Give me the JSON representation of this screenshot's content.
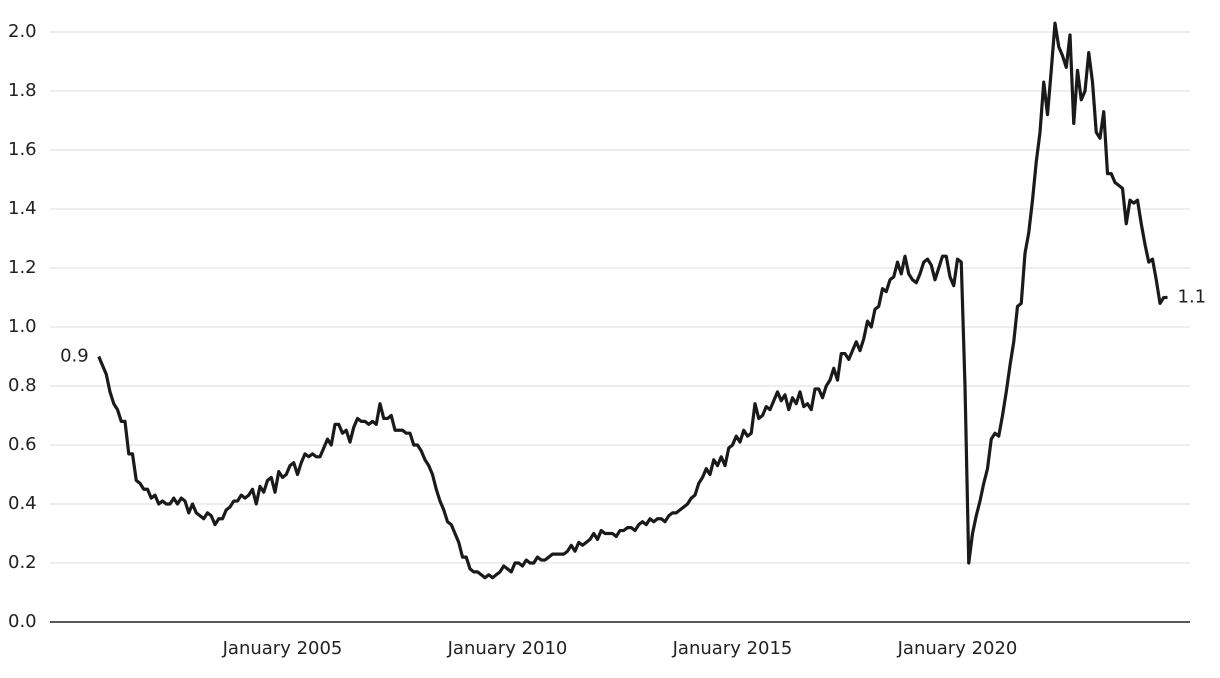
{
  "chart_data": {
    "type": "line",
    "x": [
      "2000-12",
      "2001-01",
      "2001-02",
      "2001-03",
      "2001-04",
      "2001-05",
      "2001-06",
      "2001-07",
      "2001-08",
      "2001-09",
      "2001-10",
      "2001-11",
      "2001-12",
      "2002-01",
      "2002-02",
      "2002-03",
      "2002-04",
      "2002-05",
      "2002-06",
      "2002-07",
      "2002-08",
      "2002-09",
      "2002-10",
      "2002-11",
      "2002-12",
      "2003-01",
      "2003-02",
      "2003-03",
      "2003-04",
      "2003-05",
      "2003-06",
      "2003-07",
      "2003-08",
      "2003-09",
      "2003-10",
      "2003-11",
      "2003-12",
      "2004-01",
      "2004-02",
      "2004-03",
      "2004-04",
      "2004-05",
      "2004-06",
      "2004-07",
      "2004-08",
      "2004-09",
      "2004-10",
      "2004-11",
      "2004-12",
      "2005-01",
      "2005-02",
      "2005-03",
      "2005-04",
      "2005-05",
      "2005-06",
      "2005-07",
      "2005-08",
      "2005-09",
      "2005-10",
      "2005-11",
      "2005-12",
      "2006-01",
      "2006-02",
      "2006-03",
      "2006-04",
      "2006-05",
      "2006-06",
      "2006-07",
      "2006-08",
      "2006-09",
      "2006-10",
      "2006-11",
      "2006-12",
      "2007-01",
      "2007-02",
      "2007-03",
      "2007-04",
      "2007-05",
      "2007-06",
      "2007-07",
      "2007-08",
      "2007-09",
      "2007-10",
      "2007-11",
      "2007-12",
      "2008-01",
      "2008-02",
      "2008-03",
      "2008-04",
      "2008-05",
      "2008-06",
      "2008-07",
      "2008-08",
      "2008-09",
      "2008-10",
      "2008-11",
      "2008-12",
      "2009-01",
      "2009-02",
      "2009-03",
      "2009-04",
      "2009-05",
      "2009-06",
      "2009-07",
      "2009-08",
      "2009-09",
      "2009-10",
      "2009-11",
      "2009-12",
      "2010-01",
      "2010-02",
      "2010-03",
      "2010-04",
      "2010-05",
      "2010-06",
      "2010-07",
      "2010-08",
      "2010-09",
      "2010-10",
      "2010-11",
      "2010-12",
      "2011-01",
      "2011-02",
      "2011-03",
      "2011-04",
      "2011-05",
      "2011-06",
      "2011-07",
      "2011-08",
      "2011-09",
      "2011-10",
      "2011-11",
      "2011-12",
      "2012-01",
      "2012-02",
      "2012-03",
      "2012-04",
      "2012-05",
      "2012-06",
      "2012-07",
      "2012-08",
      "2012-09",
      "2012-10",
      "2012-11",
      "2012-12",
      "2013-01",
      "2013-02",
      "2013-03",
      "2013-04",
      "2013-05",
      "2013-06",
      "2013-07",
      "2013-08",
      "2013-09",
      "2013-10",
      "2013-11",
      "2013-12",
      "2014-01",
      "2014-02",
      "2014-03",
      "2014-04",
      "2014-05",
      "2014-06",
      "2014-07",
      "2014-08",
      "2014-09",
      "2014-10",
      "2014-11",
      "2014-12",
      "2015-01",
      "2015-02",
      "2015-03",
      "2015-04",
      "2015-05",
      "2015-06",
      "2015-07",
      "2015-08",
      "2015-09",
      "2015-10",
      "2015-11",
      "2015-12",
      "2016-01",
      "2016-02",
      "2016-03",
      "2016-04",
      "2016-05",
      "2016-06",
      "2016-07",
      "2016-08",
      "2016-09",
      "2016-10",
      "2016-11",
      "2016-12",
      "2017-01",
      "2017-02",
      "2017-03",
      "2017-04",
      "2017-05",
      "2017-06",
      "2017-07",
      "2017-08",
      "2017-09",
      "2017-10",
      "2017-11",
      "2017-12",
      "2018-01",
      "2018-02",
      "2018-03",
      "2018-04",
      "2018-05",
      "2018-06",
      "2018-07",
      "2018-08",
      "2018-09",
      "2018-10",
      "2018-11",
      "2018-12",
      "2019-01",
      "2019-02",
      "2019-03",
      "2019-04",
      "2019-05",
      "2019-06",
      "2019-07",
      "2019-08",
      "2019-09",
      "2019-10",
      "2019-11",
      "2019-12",
      "2020-01",
      "2020-02",
      "2020-03",
      "2020-04",
      "2020-05",
      "2020-06",
      "2020-07",
      "2020-08",
      "2020-09",
      "2020-10",
      "2020-11",
      "2020-12",
      "2021-01",
      "2021-02",
      "2021-03",
      "2021-04",
      "2021-05",
      "2021-06",
      "2021-07",
      "2021-08",
      "2021-09",
      "2021-10",
      "2021-11",
      "2021-12",
      "2022-01",
      "2022-02",
      "2022-03",
      "2022-04",
      "2022-05",
      "2022-06",
      "2022-07",
      "2022-08",
      "2022-09",
      "2022-10",
      "2022-11",
      "2022-12",
      "2023-01",
      "2023-02",
      "2023-03",
      "2023-04",
      "2023-05",
      "2023-06",
      "2023-07",
      "2023-08",
      "2023-09",
      "2023-10",
      "2023-11",
      "2023-12",
      "2024-01",
      "2024-02",
      "2024-03",
      "2024-04",
      "2024-05",
      "2024-06",
      "2024-07",
      "2024-08",
      "2024-09"
    ],
    "series": [
      {
        "color": "#1a1a1a",
        "values": [
          0.9,
          0.87,
          0.84,
          0.78,
          0.74,
          0.72,
          0.68,
          0.68,
          0.57,
          0.57,
          0.48,
          0.47,
          0.45,
          0.45,
          0.42,
          0.43,
          0.4,
          0.41,
          0.4,
          0.4,
          0.42,
          0.4,
          0.42,
          0.41,
          0.37,
          0.4,
          0.37,
          0.36,
          0.35,
          0.37,
          0.36,
          0.33,
          0.35,
          0.35,
          0.38,
          0.39,
          0.41,
          0.41,
          0.43,
          0.42,
          0.43,
          0.45,
          0.4,
          0.46,
          0.44,
          0.48,
          0.49,
          0.44,
          0.51,
          0.49,
          0.5,
          0.53,
          0.54,
          0.5,
          0.54,
          0.57,
          0.56,
          0.57,
          0.56,
          0.56,
          0.59,
          0.62,
          0.6,
          0.67,
          0.67,
          0.64,
          0.65,
          0.61,
          0.66,
          0.69,
          0.68,
          0.68,
          0.67,
          0.68,
          0.67,
          0.74,
          0.69,
          0.69,
          0.7,
          0.65,
          0.65,
          0.65,
          0.64,
          0.64,
          0.6,
          0.6,
          0.58,
          0.55,
          0.53,
          0.5,
          0.45,
          0.41,
          0.38,
          0.34,
          0.33,
          0.3,
          0.27,
          0.22,
          0.22,
          0.18,
          0.17,
          0.17,
          0.16,
          0.15,
          0.16,
          0.15,
          0.16,
          0.17,
          0.19,
          0.18,
          0.17,
          0.2,
          0.2,
          0.19,
          0.21,
          0.2,
          0.2,
          0.22,
          0.21,
          0.21,
          0.22,
          0.23,
          0.23,
          0.23,
          0.23,
          0.24,
          0.26,
          0.24,
          0.27,
          0.26,
          0.27,
          0.28,
          0.3,
          0.28,
          0.31,
          0.3,
          0.3,
          0.3,
          0.29,
          0.31,
          0.31,
          0.32,
          0.32,
          0.31,
          0.33,
          0.34,
          0.33,
          0.35,
          0.34,
          0.35,
          0.35,
          0.34,
          0.36,
          0.37,
          0.37,
          0.38,
          0.39,
          0.4,
          0.42,
          0.43,
          0.47,
          0.49,
          0.52,
          0.5,
          0.55,
          0.53,
          0.56,
          0.53,
          0.59,
          0.6,
          0.63,
          0.61,
          0.65,
          0.63,
          0.64,
          0.74,
          0.69,
          0.7,
          0.73,
          0.72,
          0.75,
          0.78,
          0.75,
          0.77,
          0.72,
          0.76,
          0.74,
          0.78,
          0.73,
          0.74,
          0.72,
          0.79,
          0.79,
          0.76,
          0.8,
          0.82,
          0.86,
          0.82,
          0.91,
          0.91,
          0.89,
          0.92,
          0.95,
          0.92,
          0.96,
          1.02,
          1.0,
          1.06,
          1.07,
          1.13,
          1.12,
          1.16,
          1.17,
          1.22,
          1.18,
          1.24,
          1.18,
          1.16,
          1.15,
          1.18,
          1.22,
          1.23,
          1.21,
          1.16,
          1.2,
          1.24,
          1.24,
          1.17,
          1.14,
          1.23,
          1.22,
          0.8,
          0.2,
          0.3,
          0.36,
          0.41,
          0.47,
          0.52,
          0.62,
          0.64,
          0.63,
          0.7,
          0.78,
          0.87,
          0.95,
          1.07,
          1.08,
          1.25,
          1.32,
          1.43,
          1.56,
          1.66,
          1.83,
          1.72,
          1.87,
          2.03,
          1.95,
          1.92,
          1.88,
          1.99,
          1.69,
          1.87,
          1.77,
          1.8,
          1.93,
          1.83,
          1.66,
          1.64,
          1.73,
          1.52,
          1.52,
          1.49,
          1.48,
          1.47,
          1.35,
          1.43,
          1.42,
          1.43,
          1.35,
          1.28,
          1.22,
          1.23,
          1.16,
          1.08,
          1.1,
          1.1
        ]
      }
    ],
    "start_label": "0.9",
    "end_label": "1.1",
    "xlim": [
      "1999-11",
      "2025-03"
    ],
    "xticks": [
      {
        "value": "2005-01",
        "label": "January 2005"
      },
      {
        "value": "2010-01",
        "label": "January 2010"
      },
      {
        "value": "2015-01",
        "label": "January 2015"
      },
      {
        "value": "2020-01",
        "label": "January 2020"
      }
    ],
    "ylim": [
      0,
      2.0
    ],
    "yticks": [
      {
        "value": 0,
        "label": "0.0"
      },
      0.2,
      0.4,
      0.6,
      0.8,
      {
        "value": 1,
        "label": "1.0"
      },
      1.2,
      1.4,
      1.6,
      1.8,
      {
        "value": 2,
        "label": "2.0"
      }
    ],
    "grid": true
  }
}
